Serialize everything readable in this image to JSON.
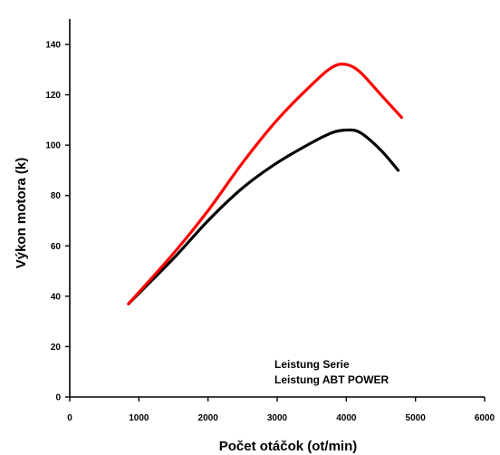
{
  "chart_data": {
    "type": "line",
    "title": "",
    "xlabel": "Počet otáčok (ot/min)",
    "ylabel": "Výkon motora (k)",
    "xlim": [
      0,
      6000
    ],
    "ylim": [
      0,
      150
    ],
    "xticks": [
      0,
      1000,
      2000,
      3000,
      4000,
      5000,
      6000
    ],
    "yticks": [
      0,
      20,
      40,
      60,
      80,
      100,
      120,
      140
    ],
    "grid": false,
    "legend_position": "bottom-right",
    "series": [
      {
        "name": "Leistung Serie",
        "color": "#000000",
        "x": [
          850,
          1500,
          2000,
          2500,
          3000,
          3500,
          3800,
          4000,
          4200,
          4500,
          4750
        ],
        "y": [
          37,
          55,
          70,
          83,
          93,
          101,
          105,
          106,
          105,
          98,
          90
        ]
      },
      {
        "name": "Leistung ABT POWER",
        "color": "#ff0000",
        "x": [
          850,
          1500,
          2000,
          2500,
          3000,
          3500,
          3800,
          4000,
          4200,
          4500,
          4800
        ],
        "y": [
          37,
          57,
          74,
          93,
          110,
          124,
          131,
          132,
          129,
          120,
          111
        ]
      }
    ]
  }
}
